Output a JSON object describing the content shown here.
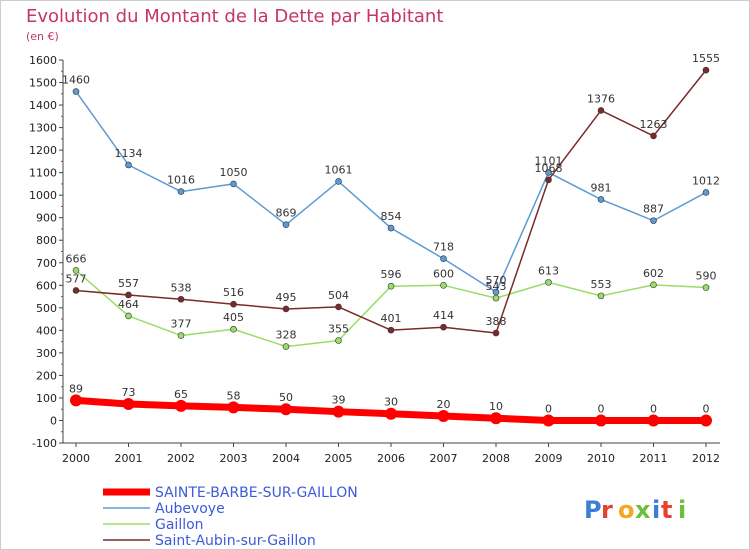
{
  "chart_data": {
    "type": "line",
    "title": "Evolution du Montant de la Dette par Habitant",
    "subtitle": "(en €)",
    "x": [
      "2000",
      "2001",
      "2002",
      "2003",
      "2004",
      "2005",
      "2006",
      "2007",
      "2008",
      "2009",
      "2010",
      "2011",
      "2012"
    ],
    "ylim": [
      -100,
      1600
    ],
    "yticks": [
      -100,
      0,
      100,
      200,
      300,
      400,
      500,
      600,
      700,
      800,
      900,
      1000,
      1100,
      1200,
      1300,
      1400,
      1500,
      1600
    ],
    "grid": false,
    "legend_position": "bottom-left",
    "series": [
      {
        "name": "SAINTE-BARBE-SUR-GAILLON",
        "color": "#ff0000",
        "values": [
          89,
          73,
          65,
          58,
          50,
          39,
          30,
          20,
          10,
          0,
          0,
          0,
          0
        ]
      },
      {
        "name": "Aubevoye",
        "color": "#5b9bd5",
        "values": [
          1460,
          1134,
          1016,
          1050,
          869,
          1061,
          854,
          718,
          570,
          1101,
          981,
          887,
          1012
        ]
      },
      {
        "name": "Gaillon",
        "color": "#99dd66",
        "values": [
          666,
          464,
          377,
          405,
          328,
          355,
          596,
          600,
          543,
          613,
          553,
          602,
          590
        ]
      },
      {
        "name": "Saint-Aubin-sur-Gaillon",
        "color": "#7a2a2a",
        "values": [
          577,
          557,
          538,
          516,
          495,
          504,
          401,
          414,
          388,
          1068,
          1376,
          1263,
          1555
        ]
      }
    ]
  },
  "series_labels": {
    "0": [
      "89",
      "73",
      "65",
      "58",
      "50",
      "39",
      "30",
      "20",
      "10",
      "0",
      "0",
      "0",
      "0"
    ],
    "1": [
      "1460",
      "1134",
      "1016",
      "1050",
      "869",
      "1061",
      "854",
      "718",
      "570",
      "1101",
      "981",
      "887",
      "1012"
    ],
    "2": [
      "666",
      "464",
      "377",
      "405",
      "328",
      "355",
      "596",
      "600",
      "543",
      "613",
      "553",
      "602",
      "590"
    ],
    "3": [
      "577",
      "557",
      "538",
      "516",
      "495",
      "504",
      "401",
      "414",
      "388",
      "1068",
      "1376",
      "1263",
      "1555"
    ]
  },
  "logo_text": "Proxiti"
}
